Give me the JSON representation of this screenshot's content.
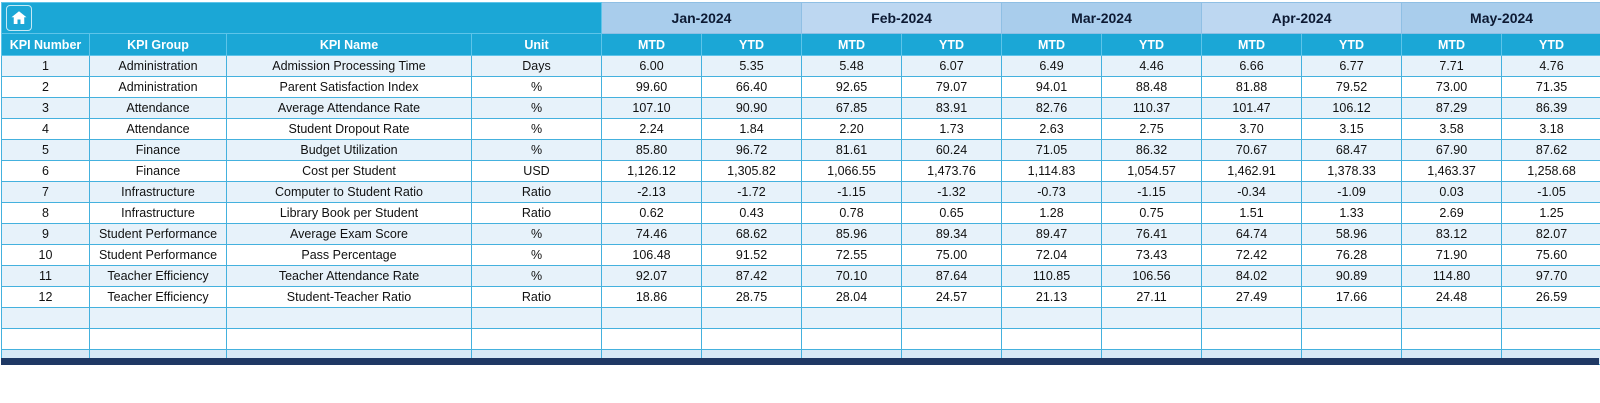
{
  "header": {
    "months": [
      "Jan-2024",
      "Feb-2024",
      "Mar-2024",
      "Apr-2024",
      "May-2024"
    ],
    "period_labels": [
      "MTD",
      "YTD"
    ],
    "columns": [
      "KPI Number",
      "KPI Group",
      "KPI Name",
      "Unit"
    ]
  },
  "rows": [
    {
      "kpi_number": "1",
      "kpi_group": "Administration",
      "kpi_name": "Admission Processing Time",
      "unit": "Days",
      "values": [
        "6.00",
        "5.35",
        "5.48",
        "6.07",
        "6.49",
        "4.46",
        "6.66",
        "6.77",
        "7.71",
        "4.76"
      ]
    },
    {
      "kpi_number": "2",
      "kpi_group": "Administration",
      "kpi_name": "Parent Satisfaction Index",
      "unit": "%",
      "values": [
        "99.60",
        "66.40",
        "92.65",
        "79.07",
        "94.01",
        "88.48",
        "81.88",
        "79.52",
        "73.00",
        "71.35"
      ]
    },
    {
      "kpi_number": "3",
      "kpi_group": "Attendance",
      "kpi_name": "Average Attendance Rate",
      "unit": "%",
      "values": [
        "107.10",
        "90.90",
        "67.85",
        "83.91",
        "82.76",
        "110.37",
        "101.47",
        "106.12",
        "87.29",
        "86.39"
      ]
    },
    {
      "kpi_number": "4",
      "kpi_group": "Attendance",
      "kpi_name": "Student Dropout Rate",
      "unit": "%",
      "values": [
        "2.24",
        "1.84",
        "2.20",
        "1.73",
        "2.63",
        "2.75",
        "3.70",
        "3.15",
        "3.58",
        "3.18"
      ]
    },
    {
      "kpi_number": "5",
      "kpi_group": "Finance",
      "kpi_name": "Budget Utilization",
      "unit": "%",
      "values": [
        "85.80",
        "96.72",
        "81.61",
        "60.24",
        "71.05",
        "86.32",
        "70.67",
        "68.47",
        "67.90",
        "87.62"
      ]
    },
    {
      "kpi_number": "6",
      "kpi_group": "Finance",
      "kpi_name": "Cost per Student",
      "unit": "USD",
      "values": [
        "1,126.12",
        "1,305.82",
        "1,066.55",
        "1,473.76",
        "1,114.83",
        "1,054.57",
        "1,462.91",
        "1,378.33",
        "1,463.37",
        "1,258.68"
      ]
    },
    {
      "kpi_number": "7",
      "kpi_group": "Infrastructure",
      "kpi_name": "Computer to Student Ratio",
      "unit": "Ratio",
      "values": [
        "-2.13",
        "-1.72",
        "-1.15",
        "-1.32",
        "-0.73",
        "-1.15",
        "-0.34",
        "-1.09",
        "0.03",
        "-1.05"
      ]
    },
    {
      "kpi_number": "8",
      "kpi_group": "Infrastructure",
      "kpi_name": "Library Book per Student",
      "unit": "Ratio",
      "values": [
        "0.62",
        "0.43",
        "0.78",
        "0.65",
        "1.28",
        "0.75",
        "1.51",
        "1.33",
        "2.69",
        "1.25"
      ]
    },
    {
      "kpi_number": "9",
      "kpi_group": "Student Performance",
      "kpi_name": "Average Exam Score",
      "unit": "%",
      "values": [
        "74.46",
        "68.62",
        "85.96",
        "89.34",
        "89.47",
        "76.41",
        "64.74",
        "58.96",
        "83.12",
        "82.07"
      ]
    },
    {
      "kpi_number": "10",
      "kpi_group": "Student Performance",
      "kpi_name": "Pass Percentage",
      "unit": "%",
      "values": [
        "106.48",
        "91.52",
        "72.55",
        "75.00",
        "72.04",
        "73.43",
        "72.42",
        "76.28",
        "71.90",
        "75.60"
      ]
    },
    {
      "kpi_number": "11",
      "kpi_group": "Teacher Efficiency",
      "kpi_name": "Teacher Attendance Rate",
      "unit": "%",
      "values": [
        "92.07",
        "87.42",
        "70.10",
        "87.64",
        "110.85",
        "106.56",
        "84.02",
        "90.89",
        "114.80",
        "97.70"
      ]
    },
    {
      "kpi_number": "12",
      "kpi_group": "Teacher Efficiency",
      "kpi_name": "Student-Teacher Ratio",
      "unit": "Ratio",
      "values": [
        "18.86",
        "28.75",
        "28.04",
        "24.57",
        "21.13",
        "27.11",
        "27.49",
        "17.66",
        "24.48",
        "26.59"
      ]
    }
  ],
  "empty_rows": 3,
  "icons": {
    "home": "home-icon"
  },
  "colors": {
    "header_cyan": "#1ba7d6",
    "month_band_a": "#a9cdec",
    "month_band_b": "#bdd7f1",
    "month_text": "#0d1a33",
    "row_tint": "#e7f2fa",
    "row_white": "#ffffff",
    "row_tail": "#d8e9f6",
    "grid_line": "#44b1de",
    "footer_bar": "#1f3864"
  }
}
